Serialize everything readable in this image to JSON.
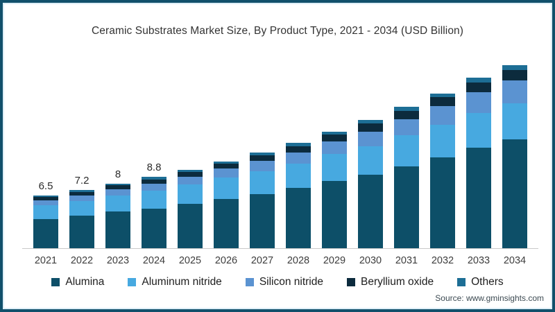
{
  "page": {
    "title": "Ceramic Substrates Market Size, By Product Type, 2021 - 2034 (USD Billion)",
    "source": "Source: www.gminsights.com"
  },
  "colors": {
    "frame_border": "#11506b",
    "axis_line": "#c9c9c9",
    "title_text": "#333333"
  },
  "chart_data": {
    "type": "bar",
    "stacked": true,
    "title": "Ceramic Substrates Market Size, By Product Type, 2021 - 2034 (USD Billion)",
    "xlabel": "",
    "ylabel": "USD Billion",
    "ylim": [
      0,
      24
    ],
    "grid": false,
    "legend_position": "bottom",
    "categories": [
      "2021",
      "2022",
      "2023",
      "2024",
      "2025",
      "2026",
      "2027",
      "2028",
      "2029",
      "2030",
      "2031",
      "2032",
      "2033",
      "2034"
    ],
    "totals": [
      6.5,
      7.2,
      8.0,
      8.8,
      9.7,
      10.7,
      11.8,
      13.0,
      14.4,
      15.8,
      17.4,
      19.1,
      21.0,
      22.6
    ],
    "total_labels": [
      "6.5",
      "7.2",
      "8",
      "8.8",
      "",
      "",
      "",
      "",
      "",
      "",
      "",
      "",
      "",
      ""
    ],
    "series": [
      {
        "name": "Alumina",
        "color": "#0d4f68",
        "values": [
          3.6,
          4.0,
          4.5,
          4.9,
          5.5,
          6.1,
          6.7,
          7.4,
          8.3,
          9.1,
          10.1,
          11.2,
          12.4,
          13.4
        ]
      },
      {
        "name": "Aluminum nitride",
        "color": "#47a9e0",
        "values": [
          1.7,
          1.85,
          2.0,
          2.2,
          2.4,
          2.6,
          2.8,
          3.0,
          3.3,
          3.5,
          3.8,
          4.0,
          4.3,
          4.5
        ]
      },
      {
        "name": "Silicon nitride",
        "color": "#5b93d1",
        "values": [
          0.6,
          0.65,
          0.75,
          0.85,
          0.95,
          1.1,
          1.25,
          1.4,
          1.6,
          1.8,
          2.0,
          2.3,
          2.5,
          2.8
        ]
      },
      {
        "name": "Beryllium oxide",
        "color": "#0c2b3d",
        "values": [
          0.4,
          0.45,
          0.5,
          0.55,
          0.55,
          0.6,
          0.7,
          0.8,
          0.8,
          0.95,
          1.0,
          1.1,
          1.2,
          1.3
        ]
      },
      {
        "name": "Others",
        "color": "#1d6e95",
        "values": [
          0.2,
          0.25,
          0.25,
          0.3,
          0.3,
          0.3,
          0.35,
          0.4,
          0.4,
          0.45,
          0.5,
          0.5,
          0.6,
          0.6
        ]
      }
    ]
  }
}
